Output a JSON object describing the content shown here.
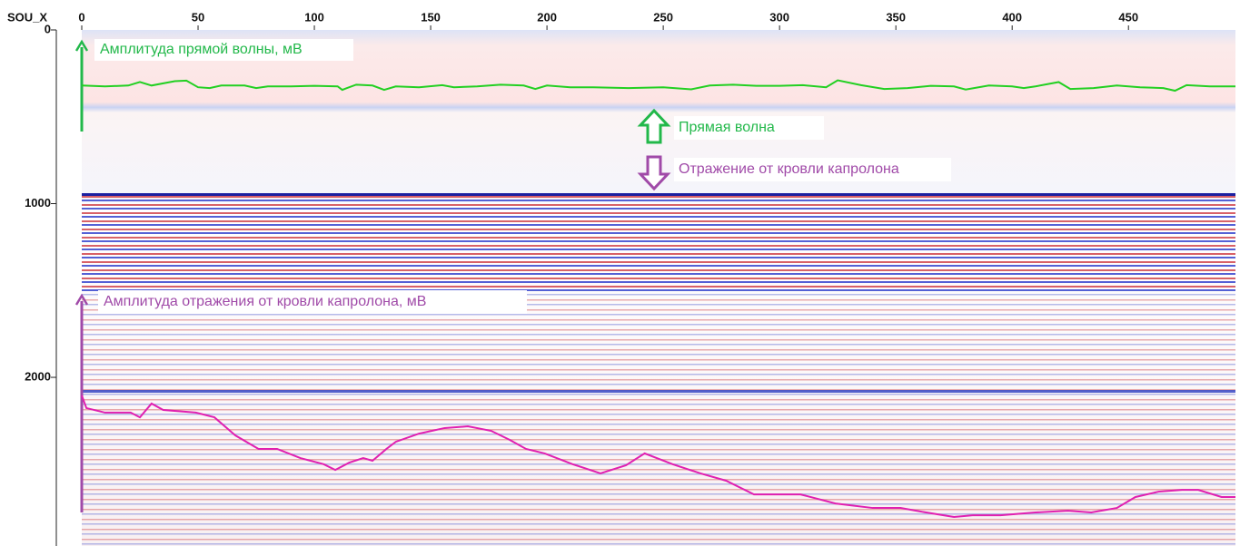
{
  "chart_data": {
    "type": "line",
    "x_label": "SOU_X",
    "xlim": [
      0,
      496
    ],
    "xticks": [
      0,
      50,
      100,
      150,
      200,
      250,
      300,
      350,
      400,
      450
    ],
    "ylim": [
      0,
      2971
    ],
    "yticks": [
      0,
      1000,
      2000
    ],
    "series": [
      {
        "name": "Амплитуда прямой волны, мВ",
        "color": "#22d022",
        "x": [
          0,
          10,
          20,
          25,
          30,
          40,
          45,
          50,
          55,
          60,
          70,
          75,
          80,
          90,
          100,
          110,
          112,
          118,
          125,
          130,
          135,
          145,
          155,
          160,
          170,
          180,
          190,
          195,
          200,
          210,
          220,
          235,
          250,
          262,
          270,
          280,
          290,
          300,
          310,
          320,
          325,
          335,
          345,
          355,
          365,
          375,
          380,
          390,
          400,
          405,
          410,
          420,
          425,
          435,
          445,
          455,
          465,
          470,
          475,
          485,
          496
        ],
        "values": [
          320,
          325,
          320,
          300,
          320,
          295,
          292,
          330,
          335,
          320,
          320,
          335,
          325,
          325,
          322,
          325,
          345,
          315,
          320,
          345,
          325,
          330,
          318,
          330,
          325,
          315,
          320,
          340,
          320,
          330,
          330,
          335,
          330,
          342,
          320,
          315,
          322,
          322,
          318,
          330,
          290,
          318,
          340,
          335,
          322,
          325,
          343,
          320,
          325,
          335,
          325,
          300,
          340,
          335,
          320,
          330,
          335,
          350,
          318,
          325,
          325
        ]
      },
      {
        "name": "Амплитуда отражения от кровли капролона, мВ",
        "color": "#e020b0",
        "x": [
          0,
          2,
          10,
          21,
          25,
          30,
          35,
          49,
          57,
          66,
          76,
          84,
          94,
          104,
          109,
          115,
          121,
          125,
          131,
          135,
          145,
          156,
          166,
          176,
          184,
          191,
          199,
          211,
          223,
          234,
          242,
          254,
          266,
          277,
          289,
          301,
          309,
          324,
          340,
          352,
          363,
          375,
          383,
          395,
          410,
          424,
          434,
          445,
          453,
          463,
          473,
          480,
          490,
          496
        ],
        "values": [
          2104,
          2177,
          2203,
          2203,
          2230,
          2151,
          2188,
          2203,
          2230,
          2334,
          2412,
          2412,
          2465,
          2500,
          2533,
          2491,
          2465,
          2480,
          2412,
          2371,
          2324,
          2292,
          2282,
          2308,
          2360,
          2412,
          2438,
          2500,
          2553,
          2506,
          2438,
          2500,
          2553,
          2595,
          2674,
          2674,
          2674,
          2726,
          2752,
          2752,
          2778,
          2804,
          2794,
          2794,
          2778,
          2768,
          2778,
          2752,
          2689,
          2658,
          2648,
          2648,
          2689,
          2689
        ]
      }
    ],
    "annotations": [
      "Прямая волна",
      "Отражение от кровли капролона"
    ]
  }
}
